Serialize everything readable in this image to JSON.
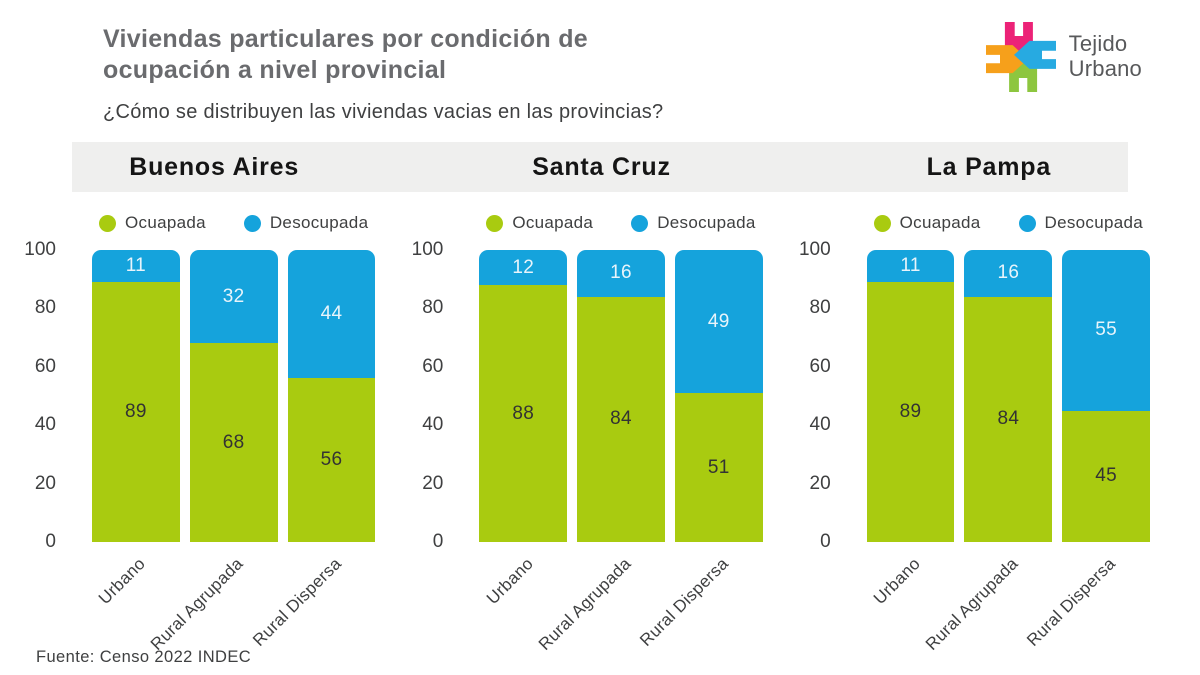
{
  "header": {
    "title": "Viviendas particulares por condición de ocupación a nivel provincial",
    "subtitle": "¿Cómo se distribuyen las viviendas vacias en las provincias?",
    "logo": {
      "line1": "Tejido",
      "line2": "Urbano"
    }
  },
  "footer": {
    "source": "Fuente: Censo 2022 INDEC"
  },
  "colors": {
    "occupied": "#a9cb10",
    "vacant": "#15a3dc",
    "band": "#efefee",
    "title_gray": "#6a6b6e",
    "text_dark": "#3f4041",
    "label_on_vacant": "#e8f4fb",
    "label_on_occupied": "#333333",
    "logo_pink": "#ec2277",
    "logo_orange": "#f6a01b",
    "logo_blue": "#27aae1",
    "logo_green": "#8dc63f"
  },
  "chart_data": [
    {
      "type": "bar",
      "stacked": true,
      "title": "Buenos Aires",
      "categories": [
        "Urbano",
        "Rural Agrupada",
        "Rural Dispersa"
      ],
      "series": [
        {
          "name": "Ocuapada",
          "values": [
            89,
            68,
            56
          ]
        },
        {
          "name": "Desocupada",
          "values": [
            11,
            32,
            44
          ]
        }
      ],
      "ylim": [
        0,
        100
      ],
      "yticks": [
        0,
        20,
        40,
        60,
        80,
        100
      ],
      "legend_position": "top",
      "grid": false
    },
    {
      "type": "bar",
      "stacked": true,
      "title": "Santa Cruz",
      "categories": [
        "Urbano",
        "Rural Agrupada",
        "Rural Dispersa"
      ],
      "series": [
        {
          "name": "Ocuapada",
          "values": [
            88,
            84,
            51
          ]
        },
        {
          "name": "Desocupada",
          "values": [
            12,
            16,
            49
          ]
        }
      ],
      "ylim": [
        0,
        100
      ],
      "yticks": [
        0,
        20,
        40,
        60,
        80,
        100
      ],
      "legend_position": "top",
      "grid": false
    },
    {
      "type": "bar",
      "stacked": true,
      "title": "La Pampa",
      "categories": [
        "Urbano",
        "Rural Agrupada",
        "Rural Dispersa"
      ],
      "series": [
        {
          "name": "Ocuapada",
          "values": [
            89,
            84,
            45
          ]
        },
        {
          "name": "Desocupada",
          "values": [
            11,
            16,
            55
          ]
        }
      ],
      "ylim": [
        0,
        100
      ],
      "yticks": [
        0,
        20,
        40,
        60,
        80,
        100
      ],
      "legend_position": "top",
      "grid": false
    }
  ]
}
